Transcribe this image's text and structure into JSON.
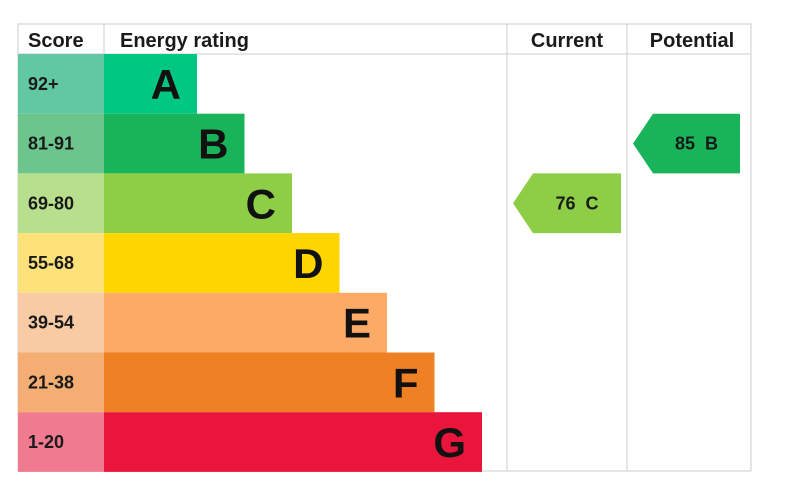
{
  "headers": {
    "score": "Score",
    "energy_rating": "Energy rating",
    "current": "Current",
    "potential": "Potential"
  },
  "chart_data": {
    "type": "bar",
    "bands": [
      {
        "letter": "A",
        "score_range": "92+",
        "min": 92,
        "max": 100,
        "color": "#00c781",
        "score_bg": "#62c7a3"
      },
      {
        "letter": "B",
        "score_range": "81-91",
        "min": 81,
        "max": 91,
        "color": "#19b459",
        "score_bg": "#6cc58c"
      },
      {
        "letter": "C",
        "score_range": "69-80",
        "min": 69,
        "max": 80,
        "color": "#8dce46",
        "score_bg": "#b7df8e"
      },
      {
        "letter": "D",
        "score_range": "55-68",
        "min": 55,
        "max": 68,
        "color": "#ffd500",
        "score_bg": "#fde27a"
      },
      {
        "letter": "E",
        "score_range": "39-54",
        "min": 39,
        "max": 54,
        "color": "#fcaa65",
        "score_bg": "#f9cba5"
      },
      {
        "letter": "F",
        "score_range": "21-38",
        "min": 21,
        "max": 38,
        "color": "#ef8023",
        "score_bg": "#f4ae74"
      },
      {
        "letter": "G",
        "score_range": "1-20",
        "min": 1,
        "max": 20,
        "color": "#e9153b",
        "score_bg": "#f07a8f"
      }
    ],
    "current": {
      "score": 76,
      "band": "C",
      "label": "76  C",
      "color": "#8dce46"
    },
    "potential": {
      "score": 85,
      "band": "B",
      "label": "85  B",
      "color": "#19b459"
    }
  }
}
